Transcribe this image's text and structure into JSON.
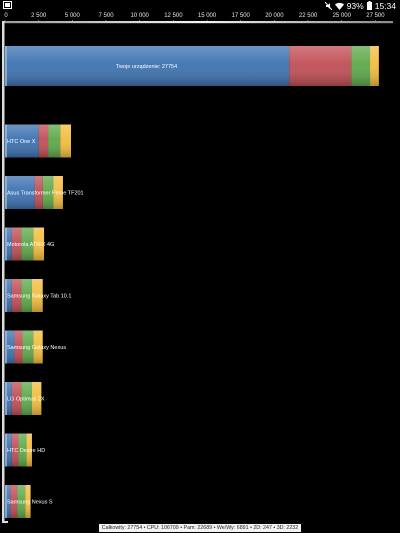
{
  "status_bar": {
    "battery_percent": "93%",
    "time": "15:34",
    "icons": [
      "screen-capture-icon",
      "mute-icon",
      "wifi-icon",
      "battery-icon"
    ]
  },
  "chart_data": {
    "type": "bar",
    "orientation": "horizontal",
    "stacked": true,
    "x_ticks": [
      "0",
      "2 500",
      "5 000",
      "7 500",
      "10 000",
      "12 500",
      "15 000",
      "17 500",
      "20 000",
      "22 500",
      "25 000",
      "27 500"
    ],
    "xlim": [
      0,
      28000
    ],
    "segment_colors": [
      "#3d72b0",
      "#c04e55",
      "#5ea84a",
      "#f2bd3f"
    ],
    "bars": [
      {
        "label": "Twoje urządzenie: 27754",
        "total": 27754,
        "segments": [
          21100,
          4600,
          1400,
          654
        ]
      },
      {
        "label": "HTC One X",
        "total": 4900,
        "segments": [
          2500,
          700,
          900,
          800
        ]
      },
      {
        "label": "Asus Transformer Prime TF201",
        "total": 4300,
        "segments": [
          2200,
          600,
          800,
          700
        ]
      },
      {
        "label": "Motorola ATRIX 4G",
        "total": 2900,
        "segments": [
          500,
          700,
          900,
          800
        ]
      },
      {
        "label": "Samsung Galaxy Tab 10.1",
        "total": 2800,
        "segments": [
          500,
          700,
          800,
          800
        ]
      },
      {
        "label": "Samsung Galaxy Nexus",
        "total": 2800,
        "segments": [
          700,
          600,
          800,
          700
        ]
      },
      {
        "label": "LG Optimus 2X",
        "total": 2700,
        "segments": [
          500,
          700,
          800,
          700
        ]
      },
      {
        "label": "HTC Desire HD",
        "total": 2000,
        "segments": [
          500,
          500,
          600,
          400
        ]
      },
      {
        "label": "Samsung Nexus S",
        "total": 1900,
        "segments": [
          400,
          500,
          600,
          400
        ]
      }
    ]
  },
  "footer": {
    "summary": "Całkowity: 27754 • CPU: 106709 • Pam: 22689 • We/Wy: 6891 • 2D: 247 • 3D: 2232"
  }
}
